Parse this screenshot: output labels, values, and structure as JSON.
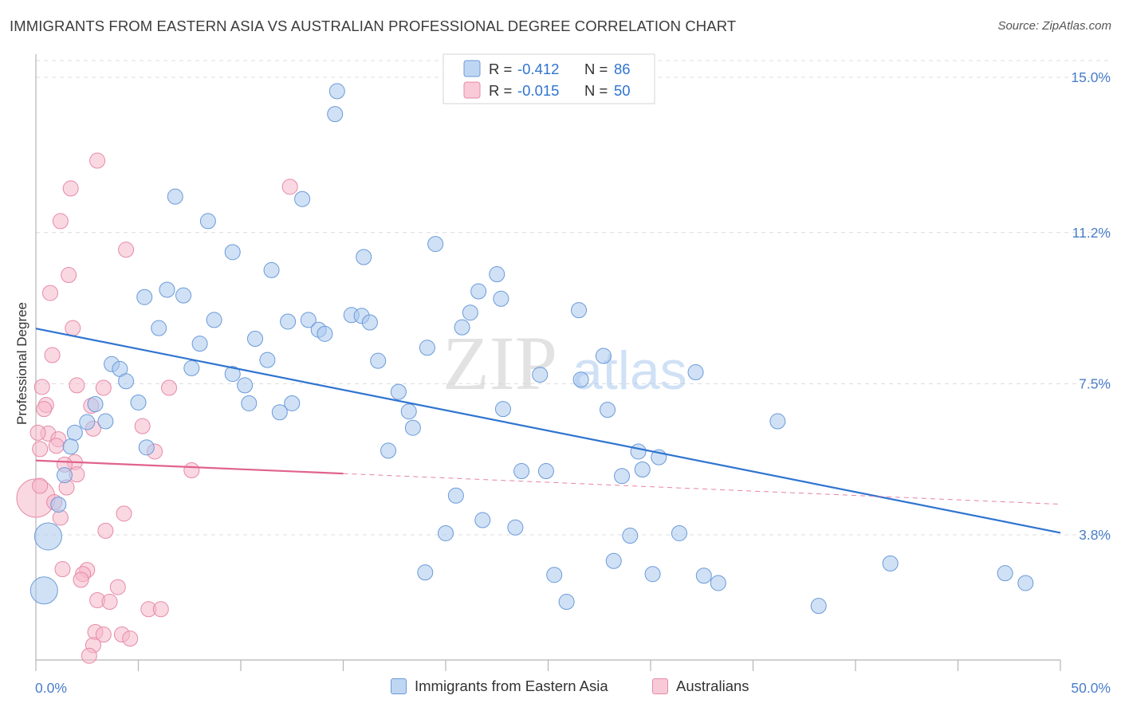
{
  "header": {
    "title": "IMMIGRANTS FROM EASTERN ASIA VS AUSTRALIAN PROFESSIONAL DEGREE CORRELATION CHART",
    "source": "Source: ZipAtlas.com"
  },
  "watermark": {
    "zip": "ZIP",
    "atlas": "atlas"
  },
  "colors": {
    "blue_fill": "#a9c8ef",
    "blue_stroke": "#6a9ad8",
    "blue_line": "#2f74d0",
    "pink_fill": "#f5b8cb",
    "pink_stroke": "#e68aa8",
    "pink_line": "#e0638e",
    "axis_label": "#4a7ec9",
    "grid": "#dcdcdc"
  },
  "stats_legend": {
    "rows": [
      {
        "r_label": "R =",
        "r_value": "-0.412",
        "n_label": "N =",
        "n_value": "86",
        "series": "blue"
      },
      {
        "r_label": "R =",
        "r_value": "-0.015",
        "n_label": "N =",
        "n_value": "50",
        "series": "pink"
      }
    ]
  },
  "bottom_legend": {
    "items": [
      {
        "label": "Immigrants from Eastern Asia",
        "series": "blue"
      },
      {
        "label": "Australians",
        "series": "pink"
      }
    ]
  },
  "chart_data": {
    "type": "scatter",
    "title": "IMMIGRANTS FROM EASTERN ASIA VS AUSTRALIAN PROFESSIONAL DEGREE CORRELATION CHART",
    "xlabel": "",
    "ylabel": "Professional Degree",
    "xlim": [
      0,
      50
    ],
    "ylim": [
      0,
      15.5
    ],
    "x_tick_labels": [
      "0.0%",
      "50.0%"
    ],
    "y_ticks": [
      3.8,
      7.5,
      11.2,
      15.0
    ],
    "y_tick_labels": [
      "3.8%",
      "7.5%",
      "11.2%",
      "15.0%"
    ],
    "grid": "horizontal dashed",
    "legend": "top-center",
    "series": [
      {
        "name": "Immigrants from Eastern Asia",
        "color": "#a9c8ef",
        "R": -0.412,
        "N": 86,
        "trend": {
          "x0": 0,
          "y0": 8.85,
          "x1": 50,
          "y1": 3.85
        },
        "points": [
          [
            14.7,
            14.66
          ],
          [
            14.6,
            14.1
          ],
          [
            6.8,
            12.08
          ],
          [
            13.0,
            12.02
          ],
          [
            8.4,
            11.48
          ],
          [
            19.5,
            10.92
          ],
          [
            9.6,
            10.72
          ],
          [
            16.0,
            10.6
          ],
          [
            11.5,
            10.28
          ],
          [
            22.5,
            10.18
          ],
          [
            6.4,
            9.8
          ],
          [
            5.3,
            9.62
          ],
          [
            7.2,
            9.66
          ],
          [
            21.6,
            9.76
          ],
          [
            22.7,
            9.58
          ],
          [
            8.7,
            9.06
          ],
          [
            15.4,
            9.18
          ],
          [
            15.9,
            9.16
          ],
          [
            12.3,
            9.02
          ],
          [
            13.3,
            9.06
          ],
          [
            16.3,
            9.0
          ],
          [
            26.5,
            9.3
          ],
          [
            21.2,
            9.24
          ],
          [
            20.8,
            8.88
          ],
          [
            6.0,
            8.86
          ],
          [
            13.8,
            8.82
          ],
          [
            14.1,
            8.72
          ],
          [
            10.7,
            8.6
          ],
          [
            8.0,
            8.48
          ],
          [
            19.1,
            8.38
          ],
          [
            27.7,
            8.18
          ],
          [
            11.3,
            8.08
          ],
          [
            16.7,
            8.06
          ],
          [
            3.7,
            7.98
          ],
          [
            4.1,
            7.86
          ],
          [
            7.6,
            7.88
          ],
          [
            9.6,
            7.74
          ],
          [
            24.6,
            7.72
          ],
          [
            26.6,
            7.6
          ],
          [
            32.2,
            7.78
          ],
          [
            4.4,
            7.56
          ],
          [
            10.2,
            7.46
          ],
          [
            17.7,
            7.3
          ],
          [
            5.0,
            7.04
          ],
          [
            10.4,
            7.02
          ],
          [
            12.5,
            7.02
          ],
          [
            2.9,
            7.0
          ],
          [
            18.2,
            6.82
          ],
          [
            11.9,
            6.8
          ],
          [
            22.8,
            6.88
          ],
          [
            27.9,
            6.86
          ],
          [
            2.5,
            6.56
          ],
          [
            3.4,
            6.58
          ],
          [
            36.2,
            6.58
          ],
          [
            18.4,
            6.42
          ],
          [
            1.9,
            6.3
          ],
          [
            1.7,
            5.96
          ],
          [
            5.4,
            5.94
          ],
          [
            17.2,
            5.86
          ],
          [
            29.4,
            5.84
          ],
          [
            30.4,
            5.7
          ],
          [
            1.4,
            5.26
          ],
          [
            23.7,
            5.36
          ],
          [
            24.9,
            5.36
          ],
          [
            29.6,
            5.4
          ],
          [
            28.6,
            5.24
          ],
          [
            20.5,
            4.76
          ],
          [
            1.1,
            4.54
          ],
          [
            21.8,
            4.16
          ],
          [
            23.4,
            3.98
          ],
          [
            20.0,
            3.84
          ],
          [
            31.4,
            3.84
          ],
          [
            0.6,
            3.76
          ],
          [
            29.0,
            3.78
          ],
          [
            28.2,
            3.16
          ],
          [
            41.7,
            3.1
          ],
          [
            19.0,
            2.88
          ],
          [
            25.3,
            2.82
          ],
          [
            30.1,
            2.84
          ],
          [
            32.6,
            2.8
          ],
          [
            33.3,
            2.62
          ],
          [
            47.3,
            2.86
          ],
          [
            48.3,
            2.62
          ],
          [
            0.4,
            2.44
          ],
          [
            25.9,
            2.16
          ],
          [
            38.2,
            2.06
          ]
        ],
        "large_points": [
          [
            0.6,
            3.76
          ],
          [
            0.4,
            2.44
          ]
        ]
      },
      {
        "name": "Australians",
        "color": "#f5b8cb",
        "R": -0.015,
        "N": 50,
        "trend": {
          "x0": 0,
          "y0": 5.62,
          "x1": 15,
          "y1": 5.3,
          "dashed_to": {
            "x": 50,
            "y": 4.55
          }
        },
        "points": [
          [
            3.0,
            12.96
          ],
          [
            12.4,
            12.32
          ],
          [
            1.7,
            12.28
          ],
          [
            1.2,
            11.48
          ],
          [
            4.4,
            10.78
          ],
          [
            1.6,
            10.16
          ],
          [
            0.7,
            9.72
          ],
          [
            1.8,
            8.86
          ],
          [
            0.8,
            8.2
          ],
          [
            2.0,
            7.46
          ],
          [
            3.3,
            7.4
          ],
          [
            6.5,
            7.4
          ],
          [
            0.3,
            7.42
          ],
          [
            0.5,
            6.98
          ],
          [
            0.4,
            6.88
          ],
          [
            2.7,
            6.96
          ],
          [
            5.2,
            6.46
          ],
          [
            2.8,
            6.4
          ],
          [
            0.6,
            6.28
          ],
          [
            0.1,
            6.3
          ],
          [
            1.1,
            6.14
          ],
          [
            1.0,
            5.98
          ],
          [
            0.2,
            5.9
          ],
          [
            5.8,
            5.84
          ],
          [
            1.9,
            5.58
          ],
          [
            1.4,
            5.52
          ],
          [
            7.6,
            5.38
          ],
          [
            2.0,
            5.28
          ],
          [
            1.5,
            4.96
          ],
          [
            0.0,
            4.7
          ],
          [
            0.9,
            4.6
          ],
          [
            4.3,
            4.32
          ],
          [
            1.2,
            4.22
          ],
          [
            3.4,
            3.9
          ],
          [
            1.3,
            2.96
          ],
          [
            2.5,
            2.94
          ],
          [
            2.3,
            2.84
          ],
          [
            2.2,
            2.7
          ],
          [
            4.0,
            2.52
          ],
          [
            3.0,
            2.2
          ],
          [
            3.6,
            2.16
          ],
          [
            5.5,
            1.98
          ],
          [
            6.1,
            1.98
          ],
          [
            2.9,
            1.42
          ],
          [
            3.3,
            1.36
          ],
          [
            4.2,
            1.36
          ],
          [
            4.6,
            1.26
          ],
          [
            2.8,
            1.1
          ],
          [
            2.6,
            0.84
          ],
          [
            0.2,
            5.0
          ]
        ],
        "large_points": [
          [
            0.0,
            4.7
          ]
        ]
      }
    ]
  }
}
